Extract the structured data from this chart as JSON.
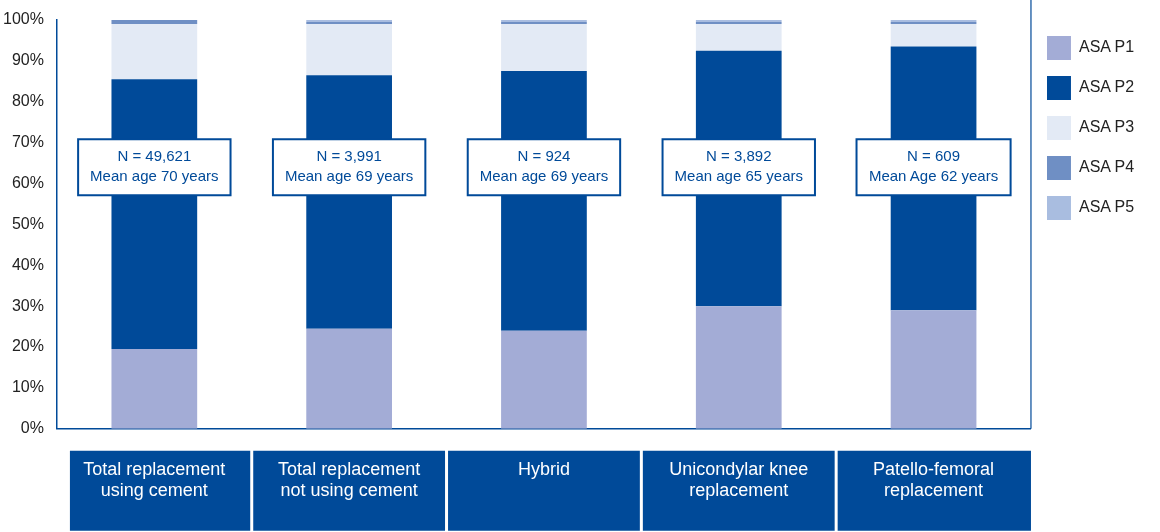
{
  "chart_data": {
    "type": "bar",
    "stacked": true,
    "categories": [
      "Total replacement\nusing cement",
      "Total replacement\nnot using cement",
      "Hybrid",
      "Unicondylar knee\nreplacement",
      "Patello-femoral\nreplacement"
    ],
    "series": [
      {
        "name": "ASA P1",
        "color": "#a3acd6",
        "values": [
          19.5,
          24.5,
          24,
          30,
          29
        ]
      },
      {
        "name": "ASA P2",
        "color": "#004a99",
        "values": [
          66,
          62,
          63.5,
          62.5,
          64.5
        ]
      },
      {
        "name": "ASA P3",
        "color": "#e3eaf5",
        "values": [
          13.5,
          12.5,
          11.5,
          6.5,
          5.5
        ]
      },
      {
        "name": "ASA P4",
        "color": "#6f8fc4",
        "values": [
          1,
          0.5,
          0.5,
          0.5,
          0.5
        ]
      },
      {
        "name": "ASA P5",
        "color": "#a9bde0",
        "values": [
          0,
          0.5,
          0.5,
          0.5,
          0.5
        ]
      }
    ],
    "ylim": [
      0,
      100
    ],
    "yticks": [
      {
        "value": 0,
        "label": "0%"
      },
      {
        "value": 10,
        "label": "10%"
      },
      {
        "value": 20,
        "label": "20%"
      },
      {
        "value": 30,
        "label": "30%"
      },
      {
        "value": 40,
        "label": "40%"
      },
      {
        "value": 50,
        "label": "50%"
      },
      {
        "value": 60,
        "label": "60%"
      },
      {
        "value": 70,
        "label": "70%"
      },
      {
        "value": 80,
        "label": "80%"
      },
      {
        "value": 90,
        "label": "90%"
      },
      {
        "value": 100,
        "label": "100%"
      }
    ],
    "grid": false,
    "legend": "top right",
    "annotations": [
      "N = 49,621\nMean age 70 years",
      "N = 3,991\nMean age 69 years",
      "N = 924\nMean age 69 years",
      "N = 3,892\nMean age 65 years",
      "N = 609\nMean Age 62 years"
    ]
  }
}
